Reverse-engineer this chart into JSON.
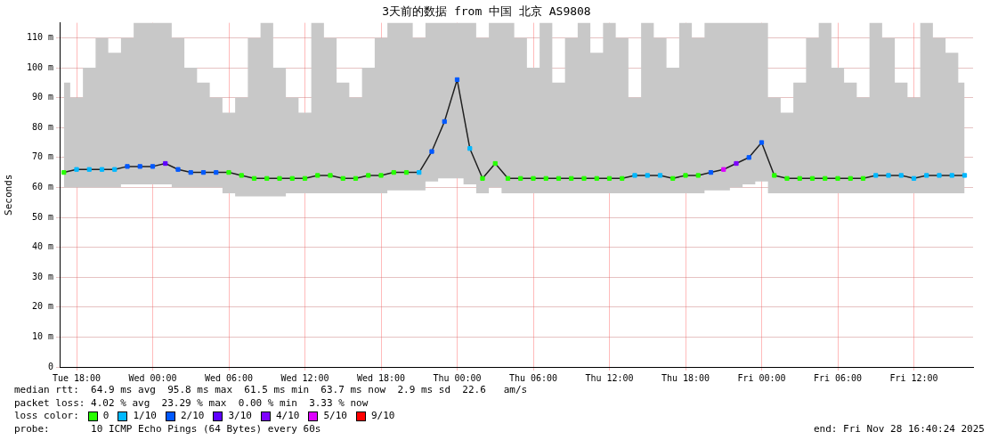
{
  "chart_data": {
    "type": "line",
    "title": "3天前的数据 from 中国 北京 AS9808",
    "ylabel": "Seconds",
    "xlim": [
      "2025-11-25T16:40",
      "2025-11-28T16:40"
    ],
    "xticks": [
      {
        "value": "2025-11-25T18:00",
        "label": "Tue 18:00"
      },
      {
        "value": "2025-11-26T00:00",
        "label": "Wed 00:00"
      },
      {
        "value": "2025-11-26T06:00",
        "label": "Wed 06:00"
      },
      {
        "value": "2025-11-26T12:00",
        "label": "Wed 12:00"
      },
      {
        "value": "2025-11-26T18:00",
        "label": "Wed 18:00"
      },
      {
        "value": "2025-11-27T00:00",
        "label": "Thu 00:00"
      },
      {
        "value": "2025-11-27T06:00",
        "label": "Thu 06:00"
      },
      {
        "value": "2025-11-27T12:00",
        "label": "Thu 12:00"
      },
      {
        "value": "2025-11-27T18:00",
        "label": "Thu 18:00"
      },
      {
        "value": "2025-11-28T00:00",
        "label": "Fri 00:00"
      },
      {
        "value": "2025-11-28T06:00",
        "label": "Fri 06:00"
      },
      {
        "value": "2025-11-28T12:00",
        "label": "Fri 12:00"
      }
    ],
    "ylim": [
      0,
      115
    ],
    "yticks": [
      0,
      {
        "value": 10,
        "label": "10 m"
      },
      {
        "value": 20,
        "label": "20 m"
      },
      {
        "value": 30,
        "label": "30 m"
      },
      {
        "value": 40,
        "label": "40 m"
      },
      {
        "value": 50,
        "label": "50 m"
      },
      {
        "value": 60,
        "label": "60 m"
      },
      {
        "value": 70,
        "label": "70 m"
      },
      {
        "value": 80,
        "label": "80 m"
      },
      {
        "value": 90,
        "label": "90 m"
      },
      {
        "value": 100,
        "label": "100 m"
      },
      {
        "value": 110,
        "label": "110 m"
      }
    ],
    "grid": true,
    "legend": "bottom",
    "marker": "square",
    "line_style": "solid",
    "series": [
      {
        "color": "#202020",
        "marker": "none",
        "x": [
          "2025-11-25T17:00",
          "2025-11-25T18:00",
          "2025-11-25T19:00",
          "2025-11-25T20:00",
          "2025-11-25T21:00",
          "2025-11-25T22:00",
          "2025-11-25T23:00",
          "2025-11-26T00:00",
          "2025-11-26T01:00",
          "2025-11-26T02:00",
          "2025-11-26T03:00",
          "2025-11-26T04:00",
          "2025-11-26T05:00",
          "2025-11-26T06:00",
          "2025-11-26T07:00",
          "2025-11-26T08:00",
          "2025-11-26T09:00",
          "2025-11-26T10:00",
          "2025-11-26T11:00",
          "2025-11-26T12:00",
          "2025-11-26T13:00",
          "2025-11-26T14:00",
          "2025-11-26T15:00",
          "2025-11-26T16:00",
          "2025-11-26T17:00",
          "2025-11-26T18:00",
          "2025-11-26T19:00",
          "2025-11-26T20:00",
          "2025-11-26T21:00",
          "2025-11-26T22:00",
          "2025-11-26T23:00",
          "2025-11-27T00:00",
          "2025-11-27T01:00",
          "2025-11-27T02:00",
          "2025-11-27T03:00",
          "2025-11-27T04:00",
          "2025-11-27T05:00",
          "2025-11-27T06:00",
          "2025-11-27T07:00",
          "2025-11-27T08:00",
          "2025-11-27T09:00",
          "2025-11-27T10:00",
          "2025-11-27T11:00",
          "2025-11-27T12:00",
          "2025-11-27T13:00",
          "2025-11-27T14:00",
          "2025-11-27T15:00",
          "2025-11-27T16:00",
          "2025-11-27T17:00",
          "2025-11-27T18:00",
          "2025-11-27T19:00",
          "2025-11-27T20:00",
          "2025-11-27T21:00",
          "2025-11-27T22:00",
          "2025-11-27T23:00",
          "2025-11-28T00:00",
          "2025-11-28T01:00",
          "2025-11-28T02:00",
          "2025-11-28T03:00",
          "2025-11-28T04:00",
          "2025-11-28T05:00",
          "2025-11-28T06:00",
          "2025-11-28T07:00",
          "2025-11-28T08:00",
          "2025-11-28T09:00",
          "2025-11-28T10:00",
          "2025-11-28T11:00",
          "2025-11-28T12:00",
          "2025-11-28T13:00",
          "2025-11-28T14:00",
          "2025-11-28T15:00",
          "2025-11-28T16:00"
        ],
        "values": [
          65,
          66,
          66,
          66,
          66,
          67,
          67,
          67,
          68,
          66,
          65,
          65,
          65,
          65,
          64,
          63,
          63,
          63,
          63,
          63,
          64,
          64,
          63,
          63,
          64,
          64,
          65,
          65,
          65,
          72,
          82,
          96,
          73,
          63,
          68,
          63,
          63,
          63,
          63,
          63,
          63,
          63,
          63,
          63,
          63,
          64,
          64,
          64,
          63,
          64,
          64,
          65,
          66,
          68,
          70,
          75,
          64,
          63,
          63,
          63,
          63,
          63,
          63,
          63,
          64,
          64,
          64,
          63,
          64,
          64,
          64,
          64
        ],
        "lower": [
          60,
          60,
          60,
          60,
          60,
          61,
          61,
          61,
          61,
          60,
          60,
          60,
          60,
          58,
          57,
          57,
          57,
          57,
          58,
          58,
          58,
          58,
          58,
          58,
          58,
          58,
          59,
          59,
          59,
          62,
          63,
          63,
          61,
          58,
          60,
          58,
          58,
          58,
          58,
          58,
          58,
          58,
          58,
          58,
          58,
          58,
          58,
          58,
          58,
          58,
          58,
          59,
          59,
          60,
          61,
          62,
          58,
          58,
          58,
          58,
          58,
          58,
          58,
          58,
          58,
          58,
          58,
          58,
          58,
          58,
          58,
          58
        ],
        "upper": [
          95,
          90,
          100,
          110,
          105,
          110,
          115,
          115,
          115,
          110,
          100,
          95,
          90,
          85,
          90,
          110,
          115,
          100,
          90,
          85,
          115,
          110,
          95,
          90,
          100,
          110,
          115,
          115,
          110,
          115,
          115,
          115,
          115,
          110,
          115,
          115,
          110,
          100,
          115,
          95,
          110,
          115,
          105,
          115,
          110,
          90,
          115,
          110,
          100,
          115,
          110,
          115,
          115,
          115,
          115,
          115,
          90,
          85,
          95,
          110,
          115,
          100,
          95,
          90,
          115,
          110,
          95,
          90,
          115,
          110,
          105,
          95
        ]
      },
      {
        "type": "scatter",
        "name": "0",
        "color": "#26ff00",
        "x": [
          "2025-11-25T17:00",
          "2025-11-26T06:00",
          "2025-11-26T07:00",
          "2025-11-26T08:00",
          "2025-11-26T09:00",
          "2025-11-26T10:00",
          "2025-11-26T11:00",
          "2025-11-26T12:00",
          "2025-11-26T13:00",
          "2025-11-26T14:00",
          "2025-11-26T15:00",
          "2025-11-26T16:00",
          "2025-11-26T17:00",
          "2025-11-26T18:00",
          "2025-11-26T19:00",
          "2025-11-26T20:00",
          "2025-11-27T02:00",
          "2025-11-27T03:00",
          "2025-11-27T04:00",
          "2025-11-27T05:00",
          "2025-11-27T06:00",
          "2025-11-27T07:00",
          "2025-11-27T08:00",
          "2025-11-27T09:00",
          "2025-11-27T10:00",
          "2025-11-27T11:00",
          "2025-11-27T12:00",
          "2025-11-27T13:00",
          "2025-11-27T17:00",
          "2025-11-27T18:00",
          "2025-11-27T19:00",
          "2025-11-28T01:00",
          "2025-11-28T02:00",
          "2025-11-28T03:00",
          "2025-11-28T04:00",
          "2025-11-28T05:00",
          "2025-11-28T06:00",
          "2025-11-28T07:00",
          "2025-11-28T08:00"
        ],
        "values": [
          65,
          65,
          64,
          63,
          63,
          63,
          63,
          63,
          64,
          64,
          63,
          63,
          64,
          64,
          65,
          65,
          63,
          68,
          63,
          63,
          63,
          63,
          63,
          63,
          63,
          63,
          63,
          63,
          63,
          64,
          64,
          64,
          63,
          63,
          63,
          63,
          63,
          63,
          63
        ]
      },
      {
        "type": "scatter",
        "name": "1/10",
        "color": "#00b8ff",
        "x": [
          "2025-11-25T18:00",
          "2025-11-25T19:00",
          "2025-11-25T20:00",
          "2025-11-25T21:00",
          "2025-11-26T21:00",
          "2025-11-27T01:00",
          "2025-11-27T14:00",
          "2025-11-27T15:00",
          "2025-11-27T16:00",
          "2025-11-28T09:00",
          "2025-11-28T10:00",
          "2025-11-28T11:00",
          "2025-11-28T12:00",
          "2025-11-28T13:00",
          "2025-11-28T14:00",
          "2025-11-28T15:00",
          "2025-11-28T16:00"
        ],
        "values": [
          66,
          66,
          66,
          66,
          65,
          73,
          64,
          64,
          64,
          64,
          64,
          64,
          63,
          64,
          64,
          64,
          64
        ]
      },
      {
        "type": "scatter",
        "name": "2/10",
        "color": "#0059ff",
        "x": [
          "2025-11-25T22:00",
          "2025-11-25T23:00",
          "2025-11-26T00:00",
          "2025-11-26T02:00",
          "2025-11-26T03:00",
          "2025-11-26T04:00",
          "2025-11-26T05:00",
          "2025-11-26T22:00",
          "2025-11-26T23:00",
          "2025-11-27T00:00",
          "2025-11-27T20:00",
          "2025-11-27T23:00",
          "2025-11-28T00:00"
        ],
        "values": [
          67,
          67,
          67,
          66,
          65,
          65,
          65,
          72,
          82,
          96,
          65,
          70,
          75
        ]
      },
      {
        "type": "scatter",
        "name": "3/10",
        "color": "#5e00ff",
        "x": [
          "2025-11-26T01:00"
        ],
        "values": [
          68
        ]
      },
      {
        "type": "scatter",
        "name": "4/10",
        "color": "#7e00ff",
        "x": [
          "2025-11-27T22:00"
        ],
        "values": [
          68
        ]
      },
      {
        "type": "scatter",
        "name": "5/10",
        "color": "#dd00ff",
        "x": [
          "2025-11-27T21:00"
        ],
        "values": [
          66
        ]
      },
      {
        "type": "scatter",
        "name": "9/10",
        "color": "#ff0000"
      }
    ],
    "annotations": [
      "median rtt:  64.9 ms avg  95.8 ms max  61.5 ms min  63.7 ms now  2.9 ms sd  22.6   am/s",
      "packet loss: 4.02 % avg  23.29 % max  0.00 % min  3.33 % now",
      "loss color:",
      "probe:       10 ICMP Echo Pings (64 Bytes) every 60s",
      "end: Fri Nov 28 16:40:24 2025"
    ]
  }
}
